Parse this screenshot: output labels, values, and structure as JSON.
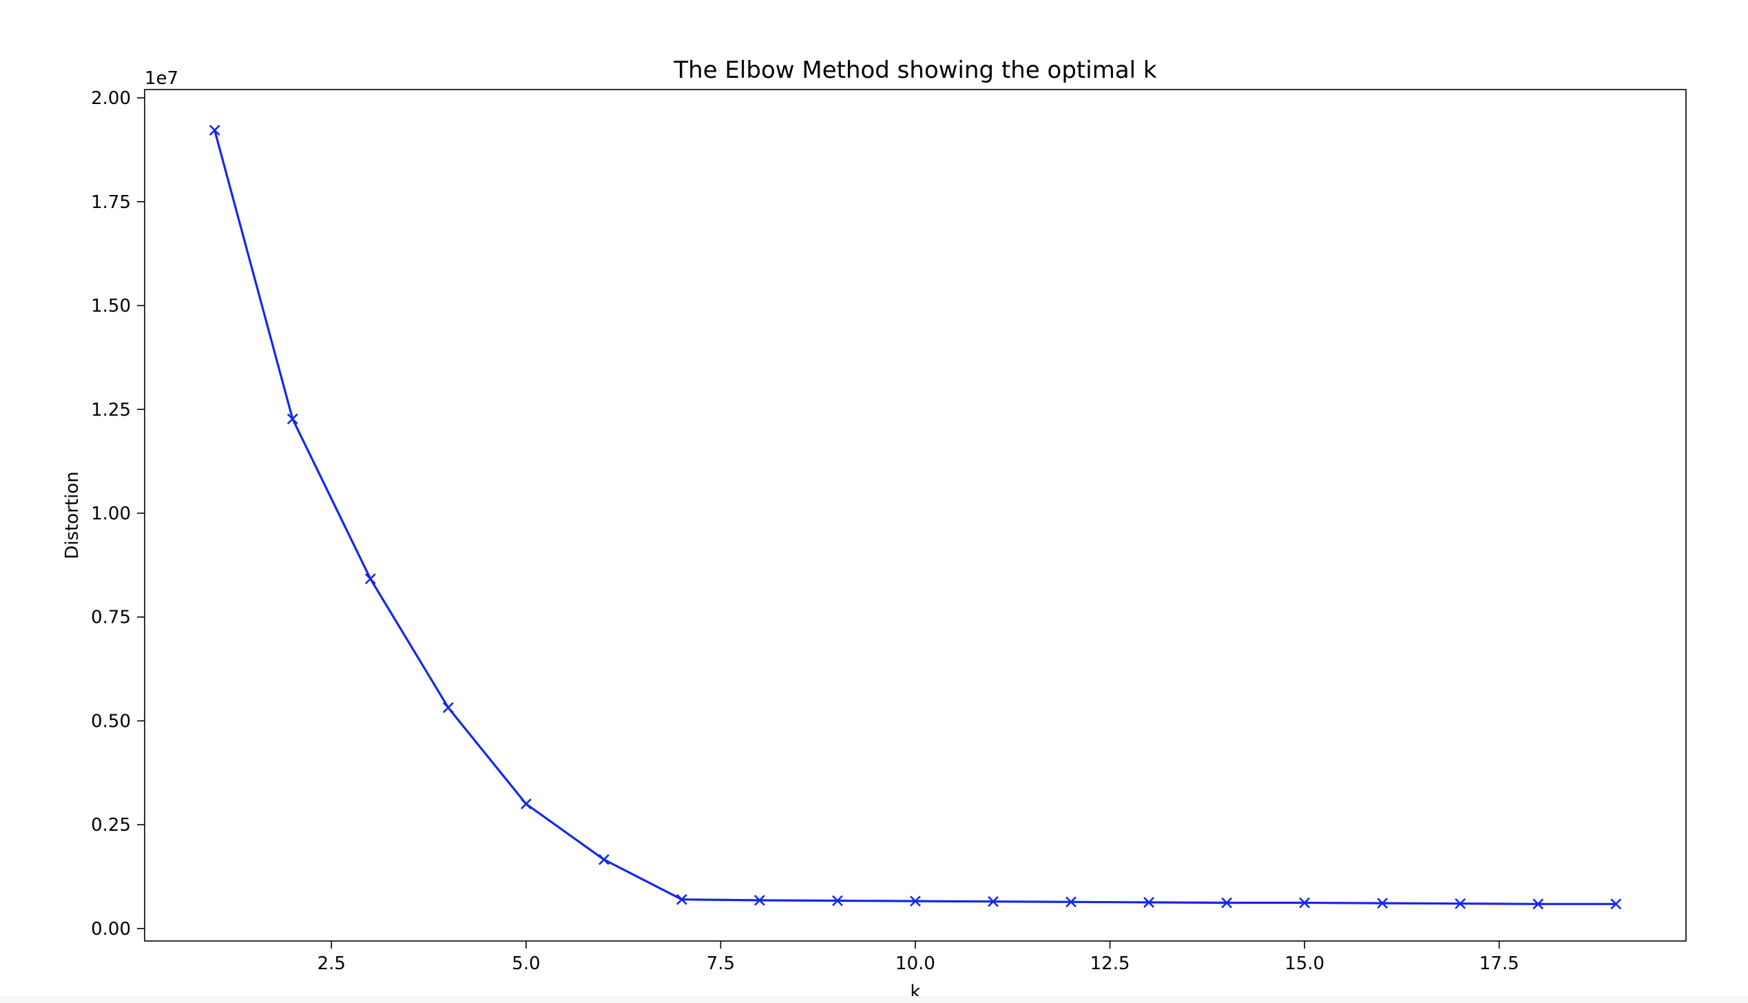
{
  "chart_data": {
    "type": "line",
    "title": "The Elbow Method showing the optimal k",
    "xlabel": "k",
    "ylabel": "Distortion",
    "y_offset_label": "1e7",
    "xlim": [
      0.1,
      19.9
    ],
    "ylim": [
      -0.03,
      2.02
    ],
    "x_ticks": [
      2.5,
      5.0,
      7.5,
      10.0,
      12.5,
      15.0,
      17.5
    ],
    "x_tick_labels": [
      "2.5",
      "5.0",
      "7.5",
      "10.0",
      "12.5",
      "15.0",
      "17.5"
    ],
    "y_ticks": [
      0.0,
      0.25,
      0.5,
      0.75,
      1.0,
      1.25,
      1.5,
      1.75,
      2.0
    ],
    "y_tick_labels": [
      "0.00",
      "0.25",
      "0.50",
      "0.75",
      "1.00",
      "1.25",
      "1.50",
      "1.75",
      "2.00"
    ],
    "grid": false,
    "legend": "none",
    "series": [
      {
        "color": "#1428e8",
        "marker": "x",
        "x": [
          1,
          2,
          3,
          4,
          5,
          6,
          7,
          8,
          9,
          10,
          11,
          12,
          13,
          14,
          15,
          16,
          17,
          18,
          19
        ],
        "values": [
          1.922,
          1.227,
          0.842,
          0.532,
          0.3,
          0.166,
          0.07,
          0.068,
          0.067,
          0.066,
          0.065,
          0.064,
          0.063,
          0.062,
          0.062,
          0.061,
          0.06,
          0.059,
          0.059
        ]
      }
    ]
  }
}
